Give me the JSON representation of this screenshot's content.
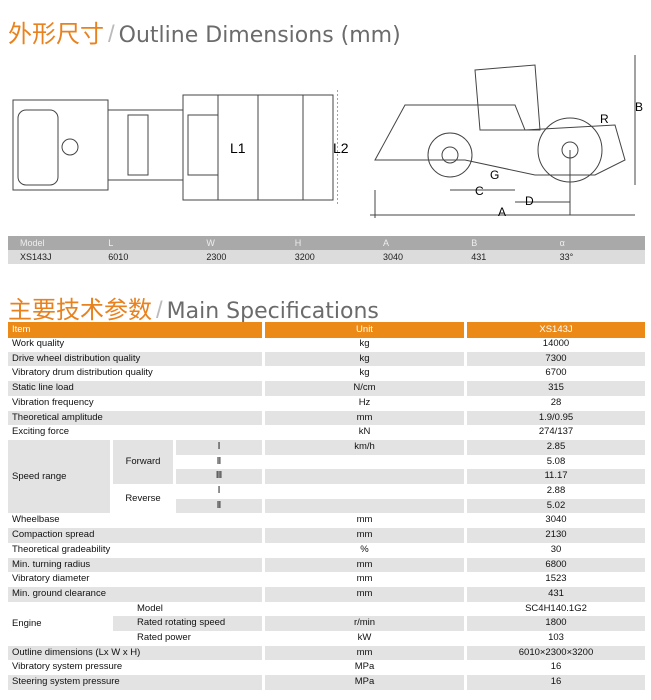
{
  "outline": {
    "title_cn": "外形尺寸",
    "title_en": "Outline Dimensions (mm)",
    "labels": {
      "L1": "L1",
      "L2": "L2",
      "R": "R",
      "B": "B",
      "G": "G",
      "C": "C",
      "D": "D",
      "A": "A"
    },
    "headers": [
      "Model",
      "L",
      "W",
      "H",
      "A",
      "B",
      "α"
    ],
    "values": [
      "XS143J",
      "6010",
      "2300",
      "3200",
      "3040",
      "431",
      "33°"
    ]
  },
  "specs": {
    "title_cn": "主要技术参数",
    "title_en": "Main Specifications",
    "headers": [
      "Item",
      "Unit",
      "XS143J"
    ],
    "rows_top": [
      [
        "Work quality",
        "kg",
        "14000"
      ],
      [
        "Drive wheel distribution quality",
        "kg",
        "7300"
      ],
      [
        "Vibratory drum distribution quality",
        "kg",
        "6700"
      ],
      [
        "Static line load",
        "N/cm",
        "315"
      ],
      [
        "Vibration frequency",
        "Hz",
        "28"
      ],
      [
        "Theoretical amplitude",
        "mm",
        "1.9/0.95"
      ],
      [
        "Exciting force",
        "kN",
        "274/137"
      ]
    ],
    "speed": {
      "label": "Speed range",
      "unit": "km/h",
      "forward": "Forward",
      "reverse": "Reverse",
      "gears": [
        [
          "Ⅰ",
          "2.85"
        ],
        [
          "Ⅱ",
          "5.08"
        ],
        [
          "Ⅲ",
          "11.17"
        ],
        [
          "Ⅰ",
          "2.88"
        ],
        [
          "Ⅱ",
          "5.02"
        ]
      ]
    },
    "rows_mid": [
      [
        "Wheelbase",
        "mm",
        "3040"
      ],
      [
        "Compaction spread",
        "mm",
        "2130"
      ],
      [
        "Theoretical gradeability",
        "%",
        "30"
      ],
      [
        "Min. turning radius",
        "mm",
        "6800"
      ],
      [
        "Vibratory diameter",
        "mm",
        "1523"
      ],
      [
        "Min. ground clearance",
        "mm",
        "431"
      ]
    ],
    "engine": {
      "label": "Engine",
      "rows": [
        [
          "Model",
          "",
          "SC4H140.1G2"
        ],
        [
          "Rated rotating speed",
          "r/min",
          "1800"
        ],
        [
          "Rated power",
          "kW",
          "103"
        ]
      ]
    },
    "rows_bottom": [
      [
        "Outline dimensions (Lx W x H)",
        "mm",
        "6010×2300×3200"
      ],
      [
        "Vibratory system pressure",
        "MPa",
        "16"
      ],
      [
        "Steering system pressure",
        "MPa",
        "16"
      ]
    ]
  }
}
